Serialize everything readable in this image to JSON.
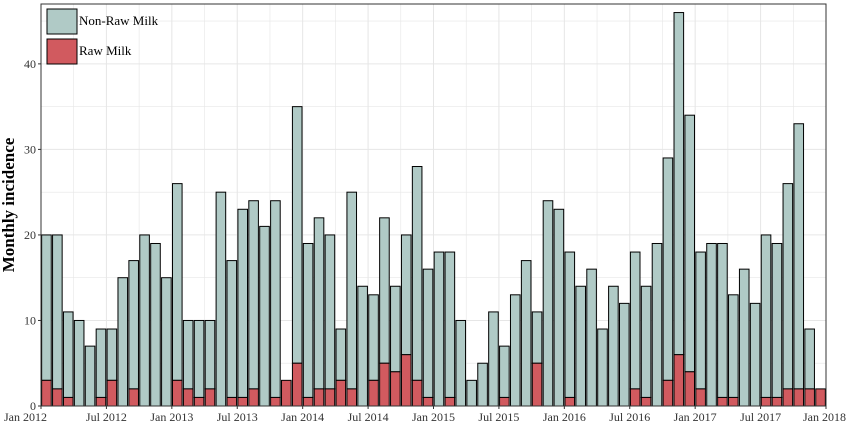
{
  "chart_data": {
    "type": "bar",
    "stacked": true,
    "ylabel": "Monthly incidence",
    "xlabel": "",
    "ylim": [
      0,
      47
    ],
    "yticks": [
      0,
      10,
      20,
      30,
      40
    ],
    "grid": true,
    "legend": "top-left",
    "x_start": "Jan 2012",
    "xtick_labels": [
      "Jan 2012",
      "Jul 2012",
      "Jan 2013",
      "Jul 2013",
      "Jan 2014",
      "Jul 2014",
      "Jan 2015",
      "Jul 2015",
      "Jan 2016",
      "Jul 2016",
      "Jan 2017",
      "Jul 2017",
      "Jan 2018"
    ],
    "categories": [
      "Jan 2012",
      "Feb 2012",
      "Mar 2012",
      "Apr 2012",
      "May 2012",
      "Jun 2012",
      "Jul 2012",
      "Aug 2012",
      "Sep 2012",
      "Oct 2012",
      "Nov 2012",
      "Dec 2012",
      "Jan 2013",
      "Feb 2013",
      "Mar 2013",
      "Apr 2013",
      "May 2013",
      "Jun 2013",
      "Jul 2013",
      "Aug 2013",
      "Sep 2013",
      "Oct 2013",
      "Nov 2013",
      "Dec 2013",
      "Jan 2014",
      "Feb 2014",
      "Mar 2014",
      "Apr 2014",
      "May 2014",
      "Jun 2014",
      "Jul 2014",
      "Aug 2014",
      "Sep 2014",
      "Oct 2014",
      "Nov 2014",
      "Dec 2014",
      "Jan 2015",
      "Feb 2015",
      "Mar 2015",
      "Apr 2015",
      "May 2015",
      "Jun 2015",
      "Jul 2015",
      "Aug 2015",
      "Sep 2015",
      "Oct 2015",
      "Nov 2015",
      "Dec 2015",
      "Jan 2016",
      "Feb 2016",
      "Mar 2016",
      "Apr 2016",
      "May 2016",
      "Jun 2016",
      "Jul 2016",
      "Aug 2016",
      "Sep 2016",
      "Oct 2016",
      "Nov 2016",
      "Dec 2016",
      "Jan 2017",
      "Feb 2017",
      "Mar 2017",
      "Apr 2017",
      "May 2017",
      "Jun 2017",
      "Jul 2017",
      "Aug 2017",
      "Sep 2017",
      "Oct 2017",
      "Nov 2017",
      "Dec 2017"
    ],
    "series": [
      {
        "name": "Raw Milk",
        "color": "#d15a5f",
        "values": [
          3,
          2,
          1,
          0,
          0,
          1,
          3,
          0,
          2,
          0,
          0,
          0,
          3,
          2,
          1,
          2,
          0,
          1,
          1,
          2,
          0,
          1,
          3,
          5,
          1,
          2,
          2,
          3,
          2,
          0,
          3,
          5,
          4,
          6,
          3,
          1,
          0,
          1,
          0,
          0,
          0,
          0,
          1,
          0,
          0,
          5,
          0,
          0,
          1,
          0,
          0,
          0,
          0,
          0,
          2,
          1,
          0,
          3,
          6,
          4,
          2,
          0,
          1,
          1,
          0,
          0,
          1,
          1,
          2,
          2,
          2,
          2
        ]
      },
      {
        "name": "Non-Raw Milk",
        "color": "#b0cac6",
        "values": [
          17,
          18,
          10,
          10,
          7,
          8,
          6,
          15,
          15,
          20,
          19,
          15,
          23,
          8,
          9,
          8,
          25,
          16,
          22,
          22,
          21,
          23,
          0,
          30,
          18,
          20,
          18,
          6,
          23,
          14,
          10,
          17,
          10,
          14,
          25,
          15,
          18,
          17,
          10,
          3,
          5,
          11,
          6,
          13,
          17,
          6,
          24,
          23,
          17,
          14,
          16,
          9,
          14,
          12,
          16,
          13,
          19,
          26,
          40,
          30,
          16,
          19,
          18,
          12,
          16,
          12,
          19,
          18,
          24,
          31,
          7,
          0
        ]
      }
    ],
    "totals": [
      20,
      20,
      11,
      10,
      7,
      9,
      9,
      15,
      17,
      20,
      19,
      15,
      26,
      10,
      10,
      10,
      25,
      17,
      23,
      24,
      21,
      24,
      3,
      35,
      19,
      22,
      20,
      9,
      25,
      14,
      13,
      22,
      14,
      20,
      28,
      16,
      18,
      18,
      10,
      3,
      5,
      11,
      7,
      13,
      17,
      11,
      24,
      23,
      18,
      14,
      16,
      9,
      14,
      12,
      18,
      14,
      19,
      29,
      46,
      34,
      18,
      19,
      19,
      13,
      16,
      12,
      20,
      19,
      26,
      33,
      9,
      2
    ],
    "colors": {
      "raw": "#d15a5f",
      "non_raw": "#b0cac6",
      "panel_bg": "#ffffff",
      "grid": "#e6e6e6",
      "bar_outline": "#000000"
    }
  }
}
